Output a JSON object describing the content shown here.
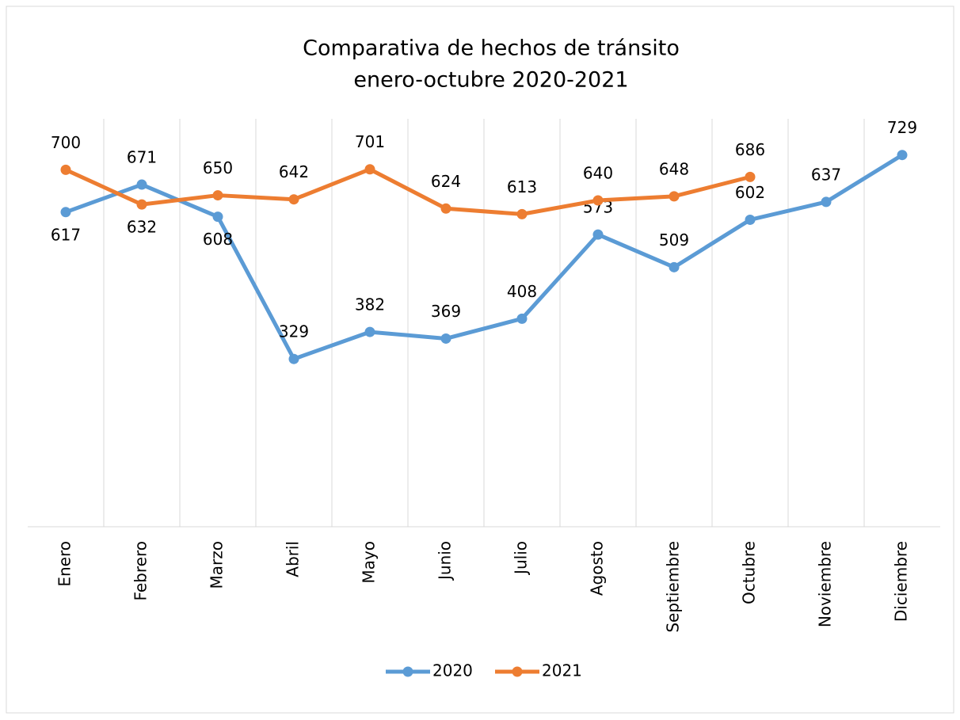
{
  "chart_data": {
    "type": "line",
    "title": [
      "Comparativa de hechos de tránsito",
      "enero-octubre 2020-2021"
    ],
    "categories": [
      "Enero",
      "Febrero",
      "Marzo",
      "Abril",
      "Mayo",
      "Junio",
      "Julio",
      "Agosto",
      "Septiembre",
      "Octubre",
      "Noviembre",
      "Diciembre"
    ],
    "series": [
      {
        "name": "2020",
        "color": "#5b9bd5",
        "values": [
          617,
          671,
          608,
          329,
          382,
          369,
          408,
          573,
          509,
          602,
          637,
          729
        ]
      },
      {
        "name": "2021",
        "color": "#ed7d31",
        "values": [
          700,
          632,
          650,
          642,
          701,
          624,
          613,
          640,
          648,
          686,
          null,
          null
        ]
      }
    ],
    "ylim": [
      0,
      800
    ],
    "grid": true,
    "legend": "bottom"
  }
}
